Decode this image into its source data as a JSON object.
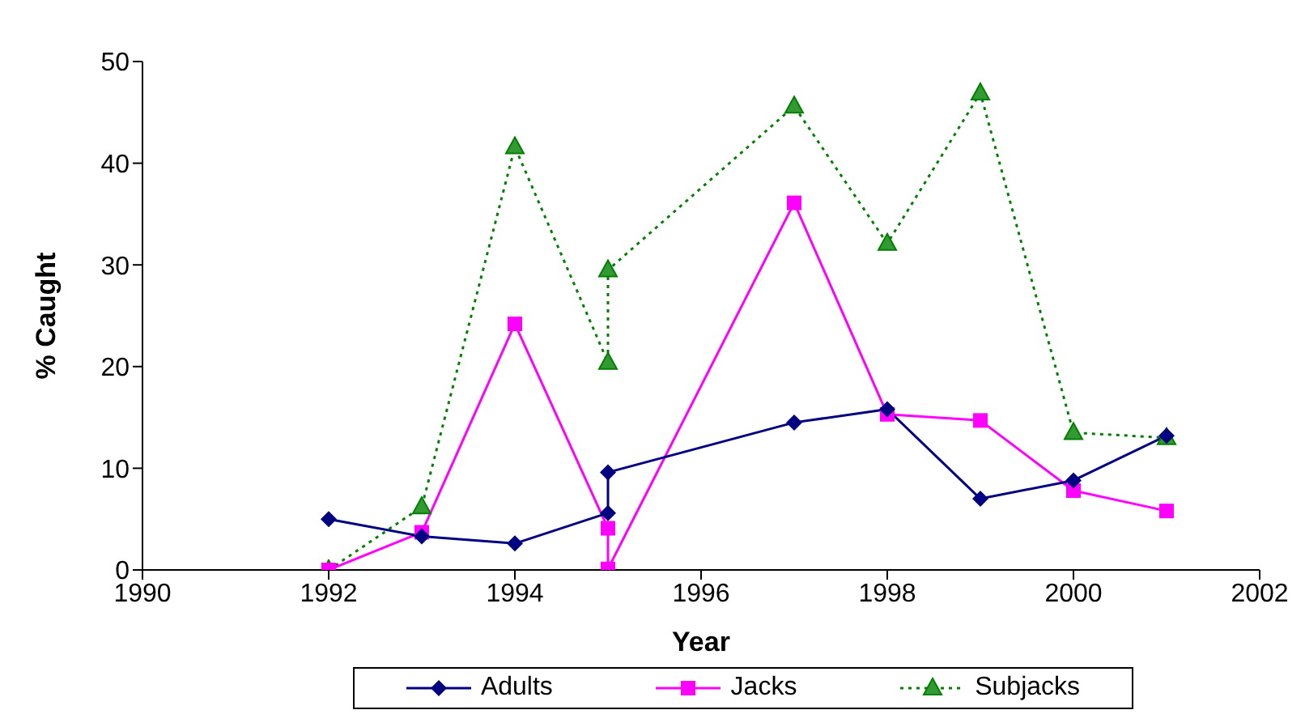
{
  "chart_data": {
    "type": "line",
    "xlabel": "Year",
    "ylabel": "% Caught",
    "xlim": [
      1990,
      2002
    ],
    "xticks": [
      1990,
      1992,
      1994,
      1996,
      1998,
      2000,
      2002
    ],
    "ylim": [
      0,
      50
    ],
    "yticks": [
      0,
      10,
      20,
      30,
      40,
      50
    ],
    "grid": false,
    "legend": "bottom",
    "series": [
      {
        "name": "Adults",
        "color": "#000080",
        "marker": "diamond",
        "line_style": "solid",
        "x": [
          1992,
          1993,
          1994,
          1995,
          1995,
          1997,
          1998,
          1999,
          2000,
          2001
        ],
        "values": [
          5.0,
          3.3,
          2.6,
          5.6,
          9.6,
          14.5,
          15.8,
          7.0,
          8.8,
          13.2
        ]
      },
      {
        "name": "Jacks",
        "color": "#ff00ff",
        "marker": "square",
        "line_style": "solid",
        "x": [
          1992,
          1993,
          1994,
          1995,
          1995,
          1997,
          1998,
          1999,
          2000,
          2001
        ],
        "values": [
          0,
          3.7,
          24.2,
          4.1,
          0.1,
          36.1,
          15.3,
          14.7,
          7.8,
          5.8
        ]
      },
      {
        "name": "Subjacks",
        "color": "#008000",
        "marker": "triangle",
        "line_style": "dotted",
        "x": [
          1992,
          1993,
          1994,
          1995,
          1995,
          1997,
          1998,
          1999,
          2000,
          2001
        ],
        "values": [
          0,
          6.2,
          41.6,
          20.4,
          29.5,
          45.6,
          32.1,
          46.9,
          13.5,
          13.0
        ]
      }
    ]
  }
}
